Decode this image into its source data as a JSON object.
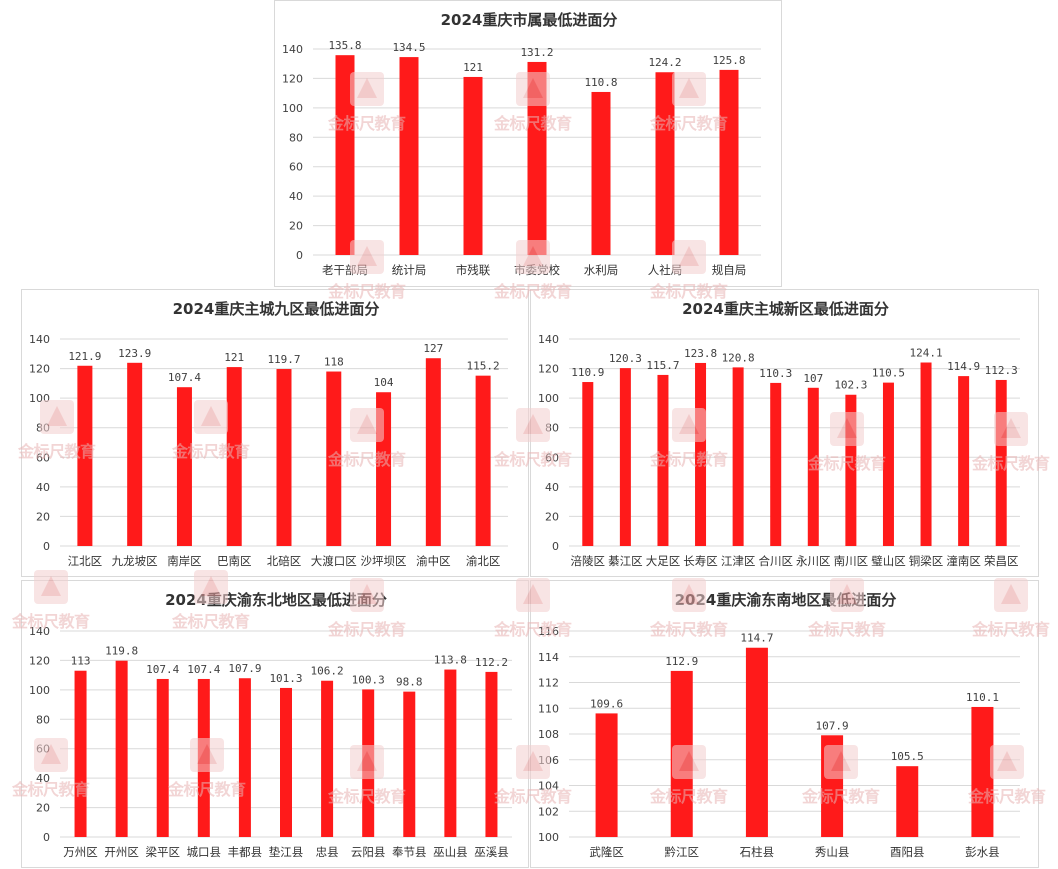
{
  "watermark": "金标尺教育",
  "colors": {
    "bar": "#ff1a1a",
    "grid": "#d9d9d9",
    "text": "#333333",
    "label": "#404040"
  },
  "chart_data": [
    {
      "type": "bar",
      "title": "2024重庆市属最低进面分",
      "categories": [
        "老干部局",
        "统计局",
        "市残联",
        "市委党校",
        "水利局",
        "人社局",
        "规自局"
      ],
      "values": [
        135.8,
        134.5,
        121,
        131.2,
        110.8,
        124.2,
        125.8
      ],
      "value_labels": [
        "135.8",
        "134.5",
        "121",
        "131.2",
        "110.8",
        "124.2",
        "125.8"
      ],
      "ylim": [
        0,
        140
      ],
      "yticks": [
        0,
        20,
        40,
        60,
        80,
        100,
        120,
        140
      ],
      "grid": true,
      "legend": "none"
    },
    {
      "type": "bar",
      "title": "2024重庆主城九区最低进面分",
      "categories": [
        "江北区",
        "九龙坡区",
        "南岸区",
        "巴南区",
        "北碚区",
        "大渡口区",
        "沙坪坝区",
        "渝中区",
        "渝北区"
      ],
      "values": [
        121.9,
        123.9,
        107.4,
        121,
        119.7,
        118,
        104,
        127,
        115.2
      ],
      "value_labels": [
        "121.9",
        "123.9",
        "107.4",
        "121",
        "119.7",
        "118",
        "104",
        "127",
        "115.2"
      ],
      "ylim": [
        0,
        140
      ],
      "yticks": [
        0,
        20,
        40,
        60,
        80,
        100,
        120,
        140
      ],
      "grid": true,
      "legend": "none"
    },
    {
      "type": "bar",
      "title": "2024重庆主城新区最低进面分",
      "categories": [
        "涪陵区",
        "綦江区",
        "大足区",
        "长寿区",
        "江津区",
        "合川区",
        "永川区",
        "南川区",
        "璧山区",
        "铜梁区",
        "潼南区",
        "荣昌区"
      ],
      "values": [
        110.9,
        120.3,
        115.7,
        123.8,
        120.8,
        110.3,
        107,
        102.3,
        110.5,
        124.1,
        114.9,
        112.3
      ],
      "value_labels": [
        "110.9",
        "120.3",
        "115.7",
        "123.8",
        "120.8",
        "110.3",
        "107",
        "102.3",
        "110.5",
        "124.1",
        "114.9",
        "112.3"
      ],
      "ylim": [
        0,
        140
      ],
      "yticks": [
        0,
        20,
        40,
        60,
        80,
        100,
        120,
        140
      ],
      "grid": true,
      "legend": "none"
    },
    {
      "type": "bar",
      "title": "2024重庆渝东北地区最低进面分",
      "categories": [
        "万州区",
        "开州区",
        "梁平区",
        "城口县",
        "丰都县",
        "垫江县",
        "忠县",
        "云阳县",
        "奉节县",
        "巫山县",
        "巫溪县"
      ],
      "values": [
        113,
        119.8,
        107.4,
        107.4,
        107.9,
        101.3,
        106.2,
        100.3,
        98.8,
        113.8,
        112.2
      ],
      "value_labels": [
        "113",
        "119.8",
        "107.4",
        "107.4",
        "107.9",
        "101.3",
        "106.2",
        "100.3",
        "98.8",
        "113.8",
        "112.2"
      ],
      "ylim": [
        0,
        140
      ],
      "yticks": [
        0,
        20,
        40,
        60,
        80,
        100,
        120,
        140
      ],
      "grid": true,
      "legend": "none"
    },
    {
      "type": "bar",
      "title": "2024重庆渝东南地区最低进面分",
      "categories": [
        "武隆区",
        "黔江区",
        "石柱县",
        "秀山县",
        "酉阳县",
        "彭水县"
      ],
      "values": [
        109.6,
        112.9,
        114.7,
        107.9,
        105.5,
        110.1
      ],
      "value_labels": [
        "109.6",
        "112.9",
        "114.7",
        "107.9",
        "105.5",
        "110.1"
      ],
      "ylim": [
        100,
        116
      ],
      "yticks": [
        100,
        102,
        104,
        106,
        108,
        110,
        112,
        114,
        116
      ],
      "grid": true,
      "legend": "none"
    }
  ]
}
